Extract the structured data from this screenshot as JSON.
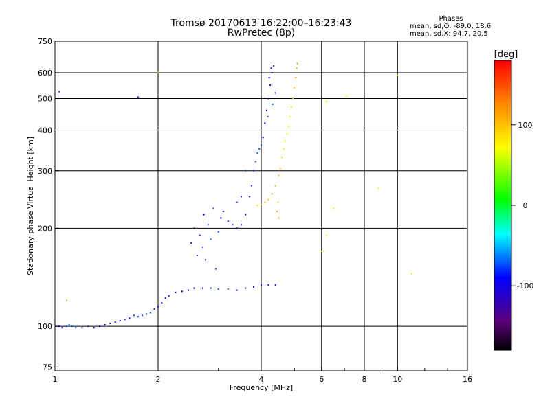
{
  "title_line1": "Tromsø 20170613 16:22:00–16:23:43",
  "title_line2": "RwPretec (8p)",
  "phases": {
    "heading": "Phases",
    "line_o": "mean, sd,O: -89.0, 18.6",
    "line_x": "mean, sd,X:  94.7, 20.5"
  },
  "colorbar": {
    "label": "[deg]",
    "ticks": [
      {
        "value": 100,
        "text": "100"
      },
      {
        "value": 0,
        "text": "0"
      },
      {
        "value": -100,
        "text": "-100"
      }
    ],
    "range": [
      -180,
      180
    ]
  },
  "chart_data": {
    "type": "scatter",
    "title": "Tromsø 20170613 16:22:00–16:23:43",
    "subtitle": "RwPretec (8p)",
    "xlabel": "Frequency [MHz]",
    "ylabel": "Stationary phase Virtual Height [km]",
    "xscale": "log",
    "yscale": "log",
    "xlim": [
      1,
      16
    ],
    "ylim": [
      73,
      750
    ],
    "x_ticks": [
      1,
      2,
      4,
      6,
      8,
      10,
      16
    ],
    "x_tick_labels": [
      "1",
      "2",
      "4",
      "6",
      "8",
      "10",
      "16"
    ],
    "y_ticks": [
      75,
      100,
      200,
      300,
      400,
      500,
      600,
      750
    ],
    "y_tick_labels": [
      "75",
      "100",
      "200",
      "300",
      "400",
      "500",
      "600",
      "750"
    ],
    "x_gridlines": [
      2,
      4,
      6,
      8,
      10
    ],
    "y_gridlines": [
      100,
      200,
      300,
      400,
      500,
      600
    ],
    "color_variable": "phase [deg]",
    "series": [
      {
        "name": "O-mode",
        "mean_phase": -89.0,
        "sd_phase": 18.6,
        "points": [
          [
            1.03,
            100
          ],
          [
            1.05,
            99
          ],
          [
            1.08,
            100
          ],
          [
            1.1,
            101
          ],
          [
            1.12,
            100
          ],
          [
            1.15,
            99
          ],
          [
            1.2,
            99
          ],
          [
            1.25,
            100
          ],
          [
            1.3,
            99
          ],
          [
            1.35,
            100
          ],
          [
            1.4,
            101
          ],
          [
            1.45,
            102
          ],
          [
            1.5,
            103
          ],
          [
            1.55,
            104
          ],
          [
            1.6,
            105
          ],
          [
            1.65,
            106
          ],
          [
            1.7,
            108
          ],
          [
            1.75,
            107
          ],
          [
            1.8,
            108
          ],
          [
            1.85,
            109
          ],
          [
            1.9,
            110
          ],
          [
            1.95,
            113
          ],
          [
            2.0,
            115
          ],
          [
            2.05,
            118
          ],
          [
            2.1,
            122
          ],
          [
            2.15,
            124
          ],
          [
            2.25,
            127
          ],
          [
            2.35,
            128
          ],
          [
            2.45,
            129
          ],
          [
            2.55,
            131
          ],
          [
            2.7,
            131
          ],
          [
            2.85,
            131
          ],
          [
            3.0,
            130
          ],
          [
            3.2,
            130
          ],
          [
            3.4,
            129
          ],
          [
            3.6,
            131
          ],
          [
            3.8,
            132
          ],
          [
            4.0,
            134
          ],
          [
            4.2,
            134
          ],
          [
            4.4,
            134
          ],
          [
            2.5,
            180
          ],
          [
            2.55,
            200
          ],
          [
            2.6,
            165
          ],
          [
            2.65,
            190
          ],
          [
            2.7,
            175
          ],
          [
            2.72,
            220
          ],
          [
            2.75,
            160
          ],
          [
            2.8,
            205
          ],
          [
            2.85,
            185
          ],
          [
            2.9,
            230
          ],
          [
            2.95,
            150
          ],
          [
            3.0,
            195
          ],
          [
            3.05,
            215
          ],
          [
            3.1,
            225
          ],
          [
            3.2,
            210
          ],
          [
            3.3,
            205
          ],
          [
            3.4,
            200
          ],
          [
            3.5,
            205
          ],
          [
            3.6,
            220
          ],
          [
            3.7,
            250
          ],
          [
            3.75,
            270
          ],
          [
            3.8,
            300
          ],
          [
            3.85,
            320
          ],
          [
            3.9,
            340
          ],
          [
            3.95,
            350
          ],
          [
            4.0,
            360
          ],
          [
            4.05,
            380
          ],
          [
            4.1,
            420
          ],
          [
            4.15,
            460
          ],
          [
            4.2,
            500
          ],
          [
            4.25,
            550
          ],
          [
            4.3,
            600
          ],
          [
            4.35,
            630
          ],
          [
            4.28,
            620
          ],
          [
            4.22,
            580
          ],
          [
            4.4,
            520
          ],
          [
            4.32,
            480
          ],
          [
            4.18,
            440
          ],
          [
            3.6,
            300
          ],
          [
            3.5,
            250
          ],
          [
            3.4,
            240
          ],
          [
            1.75,
            505
          ],
          [
            1.03,
            525
          ]
        ]
      },
      {
        "name": "X-mode",
        "mean_phase": 94.7,
        "sd_phase": 20.5,
        "points": [
          [
            3.9,
            235
          ],
          [
            4.0,
            236
          ],
          [
            4.1,
            240
          ],
          [
            4.2,
            245
          ],
          [
            4.3,
            255
          ],
          [
            4.4,
            270
          ],
          [
            4.5,
            290
          ],
          [
            4.55,
            305
          ],
          [
            4.6,
            330
          ],
          [
            4.65,
            350
          ],
          [
            4.7,
            370
          ],
          [
            4.75,
            390
          ],
          [
            4.8,
            410
          ],
          [
            4.85,
            440
          ],
          [
            4.9,
            470
          ],
          [
            4.95,
            500
          ],
          [
            5.0,
            540
          ],
          [
            5.05,
            580
          ],
          [
            5.08,
            620
          ],
          [
            5.1,
            640
          ],
          [
            4.45,
            225
          ],
          [
            4.5,
            215
          ],
          [
            4.48,
            240
          ],
          [
            6.2,
            490
          ],
          [
            6.5,
            230
          ],
          [
            6.2,
            190
          ],
          [
            6.0,
            170
          ],
          [
            7.1,
            510
          ],
          [
            10.0,
            590
          ],
          [
            8.8,
            265
          ],
          [
            11.0,
            145
          ],
          [
            1.08,
            120
          ],
          [
            2.0,
            600
          ]
        ]
      }
    ]
  }
}
